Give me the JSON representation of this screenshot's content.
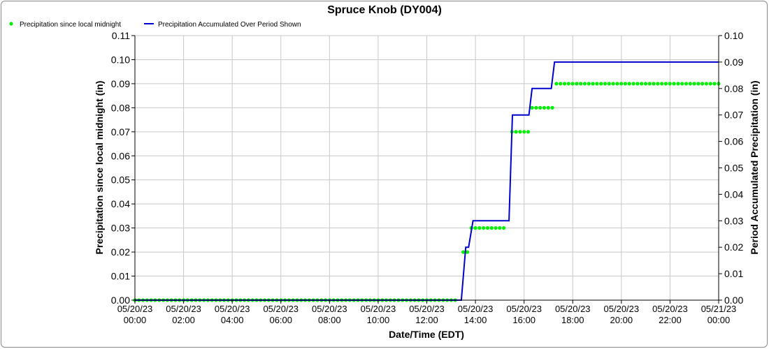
{
  "chart_data": {
    "type": "line",
    "title": "Spruce Knob (DY004)",
    "xlabel": "Date/Time (EDT)",
    "ylabel_left": "Precipitation since local midnight (in)",
    "ylabel_right": "Period Accumulated Precipitation (in)",
    "x_ticks": [
      {
        "hour": 0,
        "date": "05/20/23",
        "time": "00:00"
      },
      {
        "hour": 2,
        "date": "05/20/23",
        "time": "02:00"
      },
      {
        "hour": 4,
        "date": "05/20/23",
        "time": "04:00"
      },
      {
        "hour": 6,
        "date": "05/20/23",
        "time": "06:00"
      },
      {
        "hour": 8,
        "date": "05/20/23",
        "time": "08:00"
      },
      {
        "hour": 10,
        "date": "05/20/23",
        "time": "10:00"
      },
      {
        "hour": 12,
        "date": "05/20/23",
        "time": "12:00"
      },
      {
        "hour": 14,
        "date": "05/20/23",
        "time": "14:00"
      },
      {
        "hour": 16,
        "date": "05/20/23",
        "time": "16:00"
      },
      {
        "hour": 18,
        "date": "05/20/23",
        "time": "18:00"
      },
      {
        "hour": 20,
        "date": "05/20/23",
        "time": "20:00"
      },
      {
        "hour": 22,
        "date": "05/20/23",
        "time": "22:00"
      },
      {
        "hour": 24,
        "date": "05/21/23",
        "time": "00:00"
      }
    ],
    "xlim_hours": [
      0,
      24
    ],
    "ylim_left": [
      0,
      0.11
    ],
    "ylim_right": [
      0,
      0.1
    ],
    "yticks_left": [
      "0.00",
      "0.01",
      "0.02",
      "0.03",
      "0.04",
      "0.05",
      "0.06",
      "0.07",
      "0.08",
      "0.09",
      "0.10",
      "0.11"
    ],
    "yticks_right": [
      "0.00",
      "0.01",
      "0.02",
      "0.03",
      "0.04",
      "0.05",
      "0.06",
      "0.07",
      "0.08",
      "0.09",
      "0.10"
    ],
    "grid": true,
    "legend_position": "top-left",
    "series": [
      {
        "name": "Precipitation since local midnight",
        "axis": "left",
        "style": "dots",
        "color": "#00ee00",
        "interval_hours": 0.1667,
        "segments": [
          {
            "from": 0.0,
            "to": 13.33,
            "value": 0.0
          },
          {
            "from": 13.5,
            "to": 13.67,
            "value": 0.02
          },
          {
            "from": 13.83,
            "to": 15.33,
            "value": 0.03
          },
          {
            "from": 15.5,
            "to": 16.17,
            "value": 0.07
          },
          {
            "from": 16.33,
            "to": 17.17,
            "value": 0.08
          },
          {
            "from": 17.33,
            "to": 24.0,
            "value": 0.09
          }
        ]
      },
      {
        "name": "Precipitation Accumulated Over Period Shown",
        "axis": "right",
        "style": "line",
        "color": "#0000cc",
        "points": [
          [
            0,
            0.0
          ],
          [
            13.42,
            0.0
          ],
          [
            13.6,
            0.02
          ],
          [
            13.72,
            0.02
          ],
          [
            13.9,
            0.03
          ],
          [
            15.38,
            0.03
          ],
          [
            15.52,
            0.07
          ],
          [
            16.2,
            0.07
          ],
          [
            16.33,
            0.08
          ],
          [
            17.12,
            0.08
          ],
          [
            17.25,
            0.09
          ],
          [
            24.0,
            0.09
          ]
        ]
      }
    ]
  }
}
